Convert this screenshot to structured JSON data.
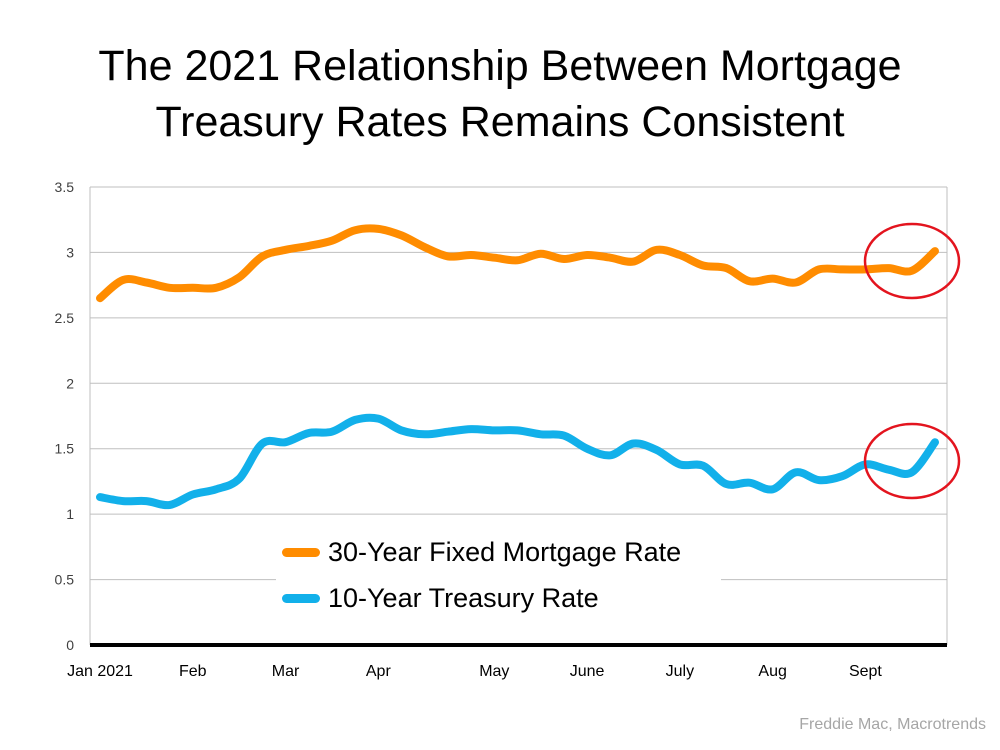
{
  "title": {
    "line1": "The 2021 Relationship Between Mortgage",
    "line2": "Treasury Rates Remains Consistent"
  },
  "source": "Freddie Mac, Macrotrends",
  "chart_data": {
    "type": "line",
    "ylim": [
      0,
      3.5
    ],
    "y_ticks": [
      "0",
      "0.5",
      "1",
      "1.5",
      "2",
      "2.5",
      "3",
      "3.5"
    ],
    "x_tick_labels": [
      "Jan 2021",
      "Feb",
      "Mar",
      "Apr",
      "May",
      "June",
      "July",
      "Aug",
      "Sept"
    ],
    "x_tick_week_index": [
      0,
      4,
      8,
      12,
      17,
      21,
      25,
      29,
      33
    ],
    "grid": true,
    "legend_position": "bottom-center",
    "highlight_circles": "around last points of both series",
    "series": [
      {
        "name": "30-Year Fixed Mortgage Rate",
        "color": "#ff8c00",
        "values": [
          2.65,
          2.79,
          2.77,
          2.73,
          2.73,
          2.73,
          2.81,
          2.97,
          3.02,
          3.05,
          3.09,
          3.17,
          3.18,
          3.13,
          3.04,
          2.97,
          2.98,
          2.96,
          2.94,
          2.99,
          2.95,
          2.98,
          2.96,
          2.93,
          3.02,
          2.98,
          2.9,
          2.88,
          2.78,
          2.8,
          2.77,
          2.87,
          2.87,
          2.87,
          2.88,
          2.86,
          3.01
        ]
      },
      {
        "name": "10-Year Treasury Rate",
        "color": "#12b0ea",
        "values": [
          1.13,
          1.1,
          1.1,
          1.07,
          1.15,
          1.19,
          1.27,
          1.54,
          1.55,
          1.62,
          1.63,
          1.72,
          1.73,
          1.64,
          1.61,
          1.63,
          1.65,
          1.64,
          1.64,
          1.61,
          1.6,
          1.5,
          1.45,
          1.54,
          1.49,
          1.38,
          1.37,
          1.23,
          1.24,
          1.19,
          1.32,
          1.26,
          1.29,
          1.38,
          1.34,
          1.32,
          1.55
        ]
      }
    ]
  }
}
